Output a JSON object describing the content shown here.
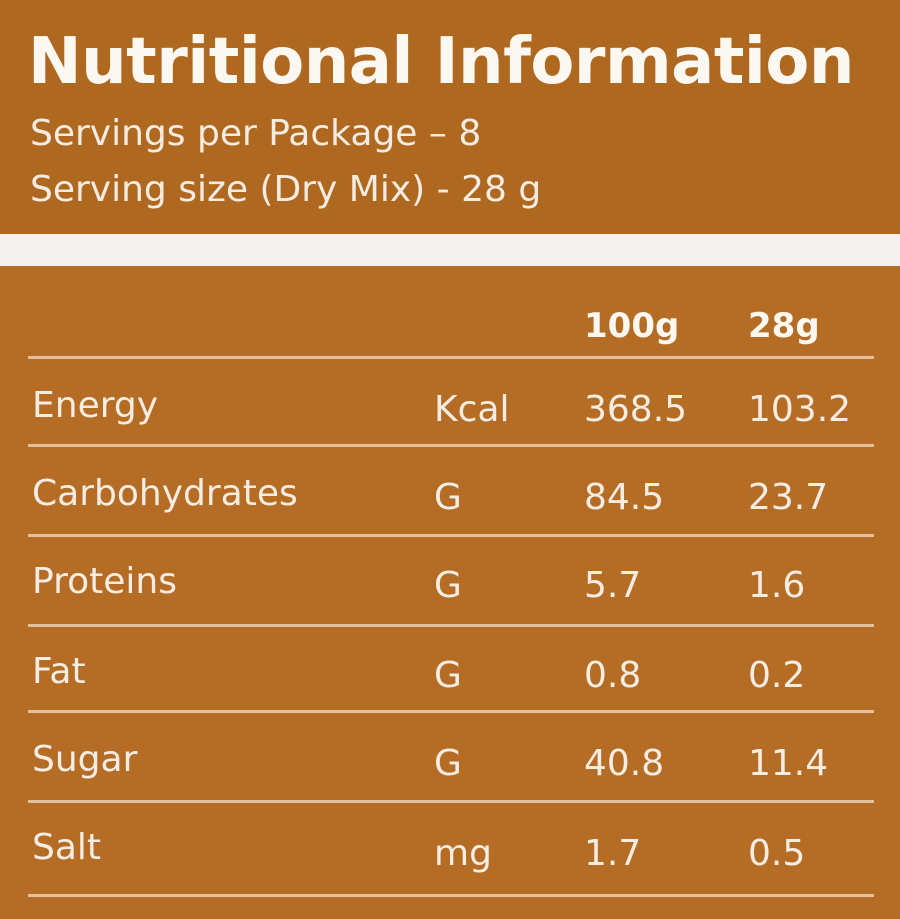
{
  "label": {
    "title": "Nutritional Information",
    "servings_per_package": "Servings per Package – 8",
    "serving_size": "Serving size (Dry Mix) - 28 g"
  },
  "table": {
    "columns": [
      "100g",
      "28g"
    ],
    "rows": [
      {
        "nutrient": "Energy",
        "unit": "Kcal",
        "per_100g": "368.5",
        "per_28g": "103.2"
      },
      {
        "nutrient": "Carbohydrates",
        "unit": "G",
        "per_100g": "84.5",
        "per_28g": "23.7"
      },
      {
        "nutrient": "Proteins",
        "unit": "G",
        "per_100g": "5.7",
        "per_28g": "1.6"
      },
      {
        "nutrient": "Fat",
        "unit": "G",
        "per_100g": "0.8",
        "per_28g": "0.2"
      },
      {
        "nutrient": "Sugar",
        "unit": "G",
        "per_100g": "40.8",
        "per_28g": "11.4"
      },
      {
        "nutrient": "Salt",
        "unit": "mg",
        "per_100g": "1.7",
        "per_28g": "0.5"
      }
    ]
  },
  "colors": {
    "background": "#b26a22",
    "band": "#f4f2ee",
    "text": "#f6efe6"
  }
}
